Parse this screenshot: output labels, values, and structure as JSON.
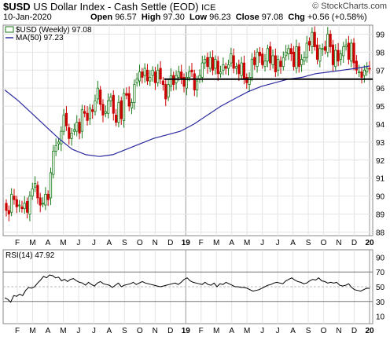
{
  "header": {
    "symbol": "$USD",
    "name": "US Dollar Index - Cash Settle (EOD)",
    "exchange": "ICE",
    "date": "10-Jan-2020",
    "open_label": "Open",
    "open": "96.57",
    "high_label": "High",
    "high": "97.30",
    "low_label": "Low",
    "low": "96.23",
    "close_label": "Close",
    "close": "97.08",
    "chg_label": "Chg",
    "chg": "+0.56 (+0.58%)",
    "brand": "© StockCharts.com"
  },
  "colors": {
    "up": "#1a7a1a",
    "down": "#cc0000",
    "ma": "#2a2aa0",
    "rsi": "#000000",
    "trendline": "#000000"
  },
  "chart_data": [
    {
      "type": "candlestick",
      "legend": [
        {
          "name": "$USD (Weekly)",
          "value": "97.08"
        },
        {
          "name": "MA(50)",
          "value": "97.23"
        }
      ],
      "x_ticks": [
        "F",
        "M",
        "A",
        "M",
        "J",
        "J",
        "A",
        "S",
        "O",
        "N",
        "D",
        "19",
        "F",
        "M",
        "A",
        "M",
        "J",
        "J",
        "A",
        "S",
        "O",
        "N",
        "D",
        "20"
      ],
      "y_ticks": [
        88,
        89,
        90,
        91,
        92,
        93,
        94,
        95,
        96,
        97,
        98,
        99
      ],
      "ylim": [
        87.8,
        99.5
      ],
      "grid": true,
      "series_close_approx": [
        89.2,
        89.0,
        90.1,
        89.8,
        89.4,
        89.5,
        89.3,
        89.6,
        89.1,
        90.0,
        90.4,
        90.7,
        89.9,
        89.5,
        89.6,
        90.1,
        89.8,
        91.3,
        92.5,
        92.8,
        93.0,
        93.6,
        94.5,
        93.9,
        93.2,
        93.5,
        93.7,
        94.1,
        93.5,
        94.8,
        94.6,
        94.2,
        94.9,
        94.7,
        95.3,
        96.0,
        95.1,
        94.5,
        94.7,
        95.3,
        95.5,
        94.6,
        94.1,
        95.2,
        94.3,
        95.7,
        95.6,
        95.0,
        95.2,
        96.2,
        96.5,
        96.9,
        96.6,
        97.1,
        96.4,
        96.6,
        97.0,
        96.3,
        97.0,
        96.5,
        96.2,
        95.4,
        96.2,
        96.7,
        96.2,
        96.7,
        96.9,
        96.5,
        96.1,
        96.6,
        96.9,
        96.9,
        95.9,
        96.4,
        96.7,
        97.4,
        97.6,
        97.2,
        97.7,
        97.0,
        97.6,
        96.8,
        96.9,
        97.3,
        97.1,
        97.3,
        97.9,
        97.1,
        97.2,
        96.8,
        97.4,
        96.5,
        96.3,
        96.6,
        97.6,
        97.3,
        98.0,
        97.8,
        97.3,
        97.5,
        98.2,
        97.4,
        97.8,
        96.9,
        97.6,
        97.2,
        97.7,
        98.0,
        98.2,
        97.9,
        97.2,
        98.3,
        97.2,
        97.6,
        97.7,
        98.5,
        98.4,
        99.1,
        98.3,
        97.6,
        98.2,
        98.2,
        98.1,
        99.0,
        98.3,
        97.3,
        98.1,
        97.5,
        97.9,
        98.3,
        98.4,
        97.6,
        98.5,
        97.4,
        97.0,
        96.9,
        96.6,
        97.0,
        97.1,
        97.08
      ],
      "ma50_approx": [
        95.9,
        95.3,
        94.6,
        93.9,
        93.2,
        92.6,
        92.3,
        92.2,
        92.3,
        92.6,
        92.9,
        93.2,
        93.4,
        93.6,
        94.0,
        94.5,
        95.0,
        95.4,
        95.8,
        96.1,
        96.3,
        96.5,
        96.6,
        96.8,
        96.9,
        97.0,
        97.1,
        97.23
      ],
      "annotations": [
        {
          "type": "horizontal_line",
          "price": 96.5,
          "from": "D",
          "to": "20"
        }
      ]
    },
    {
      "type": "line",
      "legend": [
        {
          "name": "RSI(14)",
          "value": "47.92"
        }
      ],
      "x_ticks": [
        "F",
        "M",
        "A",
        "M",
        "J",
        "J",
        "A",
        "S",
        "O",
        "N",
        "D",
        "19",
        "F",
        "M",
        "A",
        "M",
        "J",
        "J",
        "A",
        "S",
        "O",
        "N",
        "D",
        "20"
      ],
      "y_ticks": [
        90,
        70,
        50,
        30,
        10
      ],
      "ylim": [
        0,
        100
      ],
      "reference_lines": [
        70,
        50,
        30
      ],
      "values_approx": [
        35,
        33,
        29,
        38,
        37,
        40,
        38,
        45,
        49,
        48,
        50,
        55,
        59,
        64,
        62,
        66,
        65,
        62,
        63,
        58,
        60,
        57,
        60,
        61,
        58,
        56,
        55,
        52,
        56,
        53,
        51,
        55,
        57,
        54,
        53,
        52,
        49,
        52,
        55,
        50,
        52,
        53,
        54,
        56,
        53,
        55,
        57,
        55,
        54,
        53,
        52,
        51,
        50,
        51,
        52,
        53,
        54,
        55,
        53,
        56,
        60,
        62,
        58,
        56,
        55,
        54,
        53,
        56,
        53,
        52,
        55,
        50,
        54,
        53,
        56,
        54,
        52,
        50,
        50,
        49,
        49,
        48,
        46,
        44,
        45,
        46,
        48,
        50,
        52,
        53,
        55,
        56,
        55,
        54,
        58,
        60,
        62,
        59,
        57,
        56,
        54,
        55,
        58,
        60,
        59,
        62,
        58,
        57,
        55,
        56,
        55,
        56,
        52,
        51,
        52,
        54,
        49,
        46,
        45,
        44,
        46,
        48,
        47.92
      ]
    }
  ]
}
